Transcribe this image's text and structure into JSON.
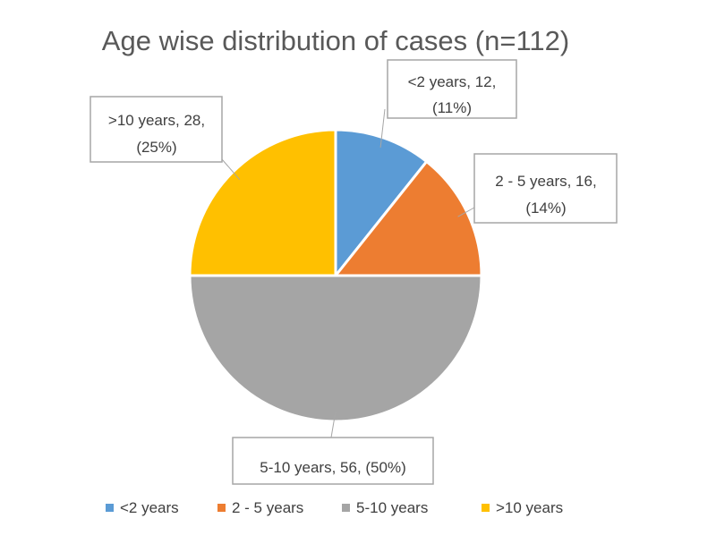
{
  "chart_data": {
    "type": "pie",
    "title": "Age wise distribution of cases (n=112)",
    "slices": [
      {
        "name": "<2 years",
        "value": 12,
        "percent": 11,
        "color": "#5B9BD5",
        "label_line1": "<2 years, 12,",
        "label_line2": "(11%)"
      },
      {
        "name": "2 - 5 years",
        "value": 16,
        "percent": 14,
        "color": "#ED7D31",
        "label_line1": "2 - 5 years, 16,",
        "label_line2": "(14%)"
      },
      {
        "name": "5-10 years",
        "value": 56,
        "percent": 50,
        "color": "#A5A5A5",
        "label_line1": "5-10 years, 56, (50%)",
        "label_line2": ""
      },
      {
        "name": ">10 years",
        "value": 28,
        "percent": 25,
        "color": "#FFC000",
        "label_line1": ">10 years, 28,",
        "label_line2": "(25%)"
      }
    ],
    "legend": {
      "position": "bottom",
      "entries": [
        "<2 years",
        "2 - 5 years",
        "5-10 years",
        ">10 years"
      ]
    }
  }
}
